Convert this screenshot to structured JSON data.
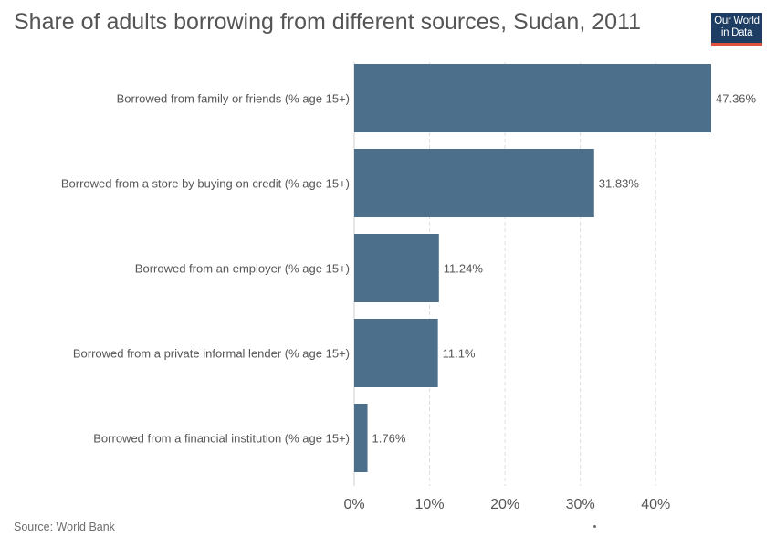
{
  "title": "Share of adults borrowing from different sources, Sudan, 2011",
  "logo": {
    "line1": "Our World",
    "line2": "in Data"
  },
  "source": "Source: World Bank",
  "chart_data": {
    "type": "bar",
    "orientation": "horizontal",
    "categories": [
      "Borrowed from family or friends (% age 15+)",
      "Borrowed from a store by buying on credit (% age 15+)",
      "Borrowed from an employer (% age 15+)",
      "Borrowed from a private informal lender (% age 15+)",
      "Borrowed from a financial institution (% age 15+)"
    ],
    "values": [
      47.36,
      31.83,
      11.24,
      11.1,
      1.76
    ],
    "value_labels": [
      "47.36%",
      "31.83%",
      "11.24%",
      "11.1%",
      "1.76%"
    ],
    "xlim": [
      0,
      47.36
    ],
    "xticks": [
      0,
      10,
      20,
      30,
      40
    ],
    "xtick_labels": [
      "0%",
      "10%",
      "20%",
      "30%",
      "40%"
    ],
    "bar_color": "#4c6f8c",
    "grid": true
  }
}
